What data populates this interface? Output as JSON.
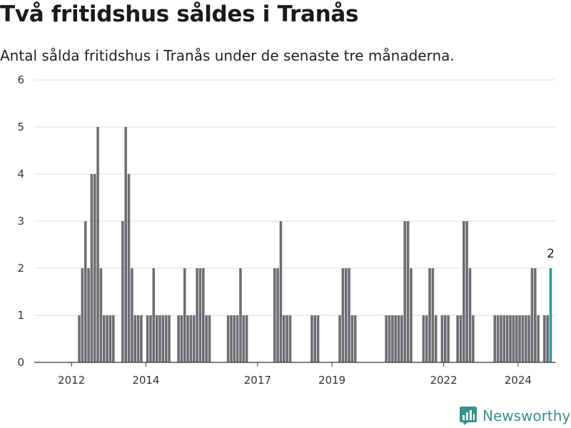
{
  "title": "Två fritidshus såldes i Tranås",
  "subtitle": "Antal sålda fritidshus i Tranås under de senaste tre månaderna.",
  "brand": "Newsworthy",
  "colors": {
    "bar": "#6d6d72",
    "highlight": "#17a39b",
    "grid": "#dcdcdc",
    "brand": "#3a8f8a"
  },
  "chart_data": {
    "type": "bar",
    "title": "Två fritidshus såldes i Tranås",
    "subtitle": "Antal sålda fritidshus i Tranås under de senaste tre månaderna.",
    "xlabel": "",
    "ylabel": "",
    "ylim": [
      0,
      6
    ],
    "yticks": [
      0,
      1,
      2,
      3,
      4,
      5,
      6
    ],
    "xticks": [
      "2012",
      "2014",
      "2017",
      "2019",
      "2022",
      "2024"
    ],
    "grid": true,
    "highlight_label": "2",
    "x_start": "2011-01",
    "x_end": "2025-01",
    "series": [
      {
        "points": [
          {
            "x": "2012-03",
            "y": 1
          },
          {
            "x": "2012-04",
            "y": 2
          },
          {
            "x": "2012-05",
            "y": 3
          },
          {
            "x": "2012-06",
            "y": 2
          },
          {
            "x": "2012-07",
            "y": 4
          },
          {
            "x": "2012-08",
            "y": 4
          },
          {
            "x": "2012-09",
            "y": 5
          },
          {
            "x": "2012-10",
            "y": 2
          },
          {
            "x": "2012-11",
            "y": 1
          },
          {
            "x": "2012-12",
            "y": 1
          },
          {
            "x": "2013-01",
            "y": 1
          },
          {
            "x": "2013-02",
            "y": 1
          },
          {
            "x": "2013-05",
            "y": 3
          },
          {
            "x": "2013-06",
            "y": 5
          },
          {
            "x": "2013-07",
            "y": 4
          },
          {
            "x": "2013-08",
            "y": 2
          },
          {
            "x": "2013-09",
            "y": 1
          },
          {
            "x": "2013-10",
            "y": 1
          },
          {
            "x": "2013-11",
            "y": 1
          },
          {
            "x": "2014-01",
            "y": 1
          },
          {
            "x": "2014-02",
            "y": 1
          },
          {
            "x": "2014-03",
            "y": 2
          },
          {
            "x": "2014-04",
            "y": 1
          },
          {
            "x": "2014-05",
            "y": 1
          },
          {
            "x": "2014-06",
            "y": 1
          },
          {
            "x": "2014-07",
            "y": 1
          },
          {
            "x": "2014-08",
            "y": 1
          },
          {
            "x": "2014-11",
            "y": 1
          },
          {
            "x": "2014-12",
            "y": 1
          },
          {
            "x": "2015-01",
            "y": 2
          },
          {
            "x": "2015-02",
            "y": 1
          },
          {
            "x": "2015-03",
            "y": 1
          },
          {
            "x": "2015-04",
            "y": 1
          },
          {
            "x": "2015-05",
            "y": 2
          },
          {
            "x": "2015-06",
            "y": 2
          },
          {
            "x": "2015-07",
            "y": 2
          },
          {
            "x": "2015-08",
            "y": 1
          },
          {
            "x": "2015-09",
            "y": 1
          },
          {
            "x": "2016-03",
            "y": 1
          },
          {
            "x": "2016-04",
            "y": 1
          },
          {
            "x": "2016-05",
            "y": 1
          },
          {
            "x": "2016-06",
            "y": 1
          },
          {
            "x": "2016-07",
            "y": 2
          },
          {
            "x": "2016-08",
            "y": 1
          },
          {
            "x": "2016-09",
            "y": 1
          },
          {
            "x": "2017-06",
            "y": 2
          },
          {
            "x": "2017-07",
            "y": 2
          },
          {
            "x": "2017-08",
            "y": 3
          },
          {
            "x": "2017-09",
            "y": 1
          },
          {
            "x": "2017-10",
            "y": 1
          },
          {
            "x": "2017-11",
            "y": 1
          },
          {
            "x": "2018-06",
            "y": 1
          },
          {
            "x": "2018-07",
            "y": 1
          },
          {
            "x": "2018-08",
            "y": 1
          },
          {
            "x": "2019-03",
            "y": 1
          },
          {
            "x": "2019-04",
            "y": 2
          },
          {
            "x": "2019-05",
            "y": 2
          },
          {
            "x": "2019-06",
            "y": 2
          },
          {
            "x": "2019-07",
            "y": 1
          },
          {
            "x": "2019-08",
            "y": 1
          },
          {
            "x": "2020-06",
            "y": 1
          },
          {
            "x": "2020-07",
            "y": 1
          },
          {
            "x": "2020-08",
            "y": 1
          },
          {
            "x": "2020-09",
            "y": 1
          },
          {
            "x": "2020-10",
            "y": 1
          },
          {
            "x": "2020-11",
            "y": 1
          },
          {
            "x": "2020-12",
            "y": 3
          },
          {
            "x": "2021-01",
            "y": 3
          },
          {
            "x": "2021-02",
            "y": 2
          },
          {
            "x": "2021-06",
            "y": 1
          },
          {
            "x": "2021-07",
            "y": 1
          },
          {
            "x": "2021-08",
            "y": 2
          },
          {
            "x": "2021-09",
            "y": 2
          },
          {
            "x": "2021-10",
            "y": 1
          },
          {
            "x": "2021-12",
            "y": 1
          },
          {
            "x": "2022-01",
            "y": 1
          },
          {
            "x": "2022-02",
            "y": 1
          },
          {
            "x": "2022-05",
            "y": 1
          },
          {
            "x": "2022-06",
            "y": 1
          },
          {
            "x": "2022-07",
            "y": 3
          },
          {
            "x": "2022-08",
            "y": 3
          },
          {
            "x": "2022-09",
            "y": 2
          },
          {
            "x": "2022-10",
            "y": 1
          },
          {
            "x": "2023-05",
            "y": 1
          },
          {
            "x": "2023-06",
            "y": 1
          },
          {
            "x": "2023-07",
            "y": 1
          },
          {
            "x": "2023-08",
            "y": 1
          },
          {
            "x": "2023-09",
            "y": 1
          },
          {
            "x": "2023-10",
            "y": 1
          },
          {
            "x": "2023-11",
            "y": 1
          },
          {
            "x": "2023-12",
            "y": 1
          },
          {
            "x": "2024-01",
            "y": 1
          },
          {
            "x": "2024-02",
            "y": 1
          },
          {
            "x": "2024-03",
            "y": 1
          },
          {
            "x": "2024-04",
            "y": 1
          },
          {
            "x": "2024-05",
            "y": 2
          },
          {
            "x": "2024-06",
            "y": 2
          },
          {
            "x": "2024-07",
            "y": 1
          },
          {
            "x": "2024-09",
            "y": 1
          },
          {
            "x": "2024-10",
            "y": 1
          },
          {
            "x": "2024-11",
            "y": 2,
            "highlight": true
          }
        ]
      }
    ]
  }
}
